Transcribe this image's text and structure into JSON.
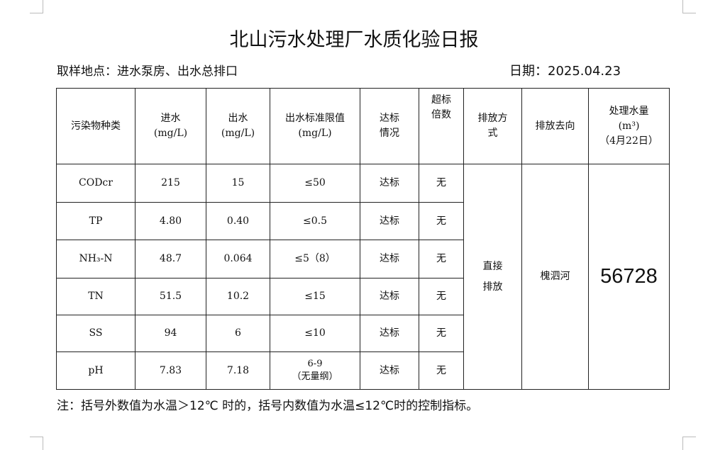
{
  "title": "北山污水处理厂水质化验日报",
  "location": "取样地点：进水泵房、出水总排口",
  "date": "日期：2025.04.23",
  "headers": {
    "pollutant": "污染物种类",
    "inflow": "进水",
    "inflow_unit": "(mg/L)",
    "outflow": "出水",
    "outflow_unit": "(mg/L)",
    "limit": "出水标准限值",
    "limit_unit": "(mg/L)",
    "status": "达标",
    "status2": "情况",
    "exceed": "超标",
    "exceed2": "倍数",
    "discharge_mode": "排放方",
    "discharge_mode2": "式",
    "destination": "排放去向",
    "volume": "处理水量",
    "volume_unit": "(m³)",
    "volume_date": "（4月22日）"
  },
  "rows": [
    {
      "name": "CODcr",
      "in": "215",
      "out": "15",
      "limit": "≤50",
      "status": "达标",
      "exceed": "无"
    },
    {
      "name": "TP",
      "in": "4.80",
      "out": "0.40",
      "limit": "≤0.5",
      "status": "达标",
      "exceed": "无"
    },
    {
      "name": "NH₃-N",
      "in": "48.7",
      "out": "0.064",
      "limit": "≤5（8）",
      "status": "达标",
      "exceed": "无"
    },
    {
      "name": "TN",
      "in": "51.5",
      "out": "10.2",
      "limit": "≤15",
      "status": "达标",
      "exceed": "无"
    },
    {
      "name": "SS",
      "in": "94",
      "out": "6",
      "limit": "≤10",
      "status": "达标",
      "exceed": "无"
    },
    {
      "name": "pH",
      "in": "7.83",
      "out": "7.18",
      "limit": "6-9",
      "limit2": "（无量纲）",
      "status": "达标",
      "exceed": "无"
    }
  ],
  "discharge_mode": "直接",
  "discharge_mode2": "排放",
  "destination": "槐泗河",
  "volume": "56728",
  "note": "注：括号外数值为水温＞12℃ 时的，括号内数值为水温≤12℃时的控制指标。"
}
